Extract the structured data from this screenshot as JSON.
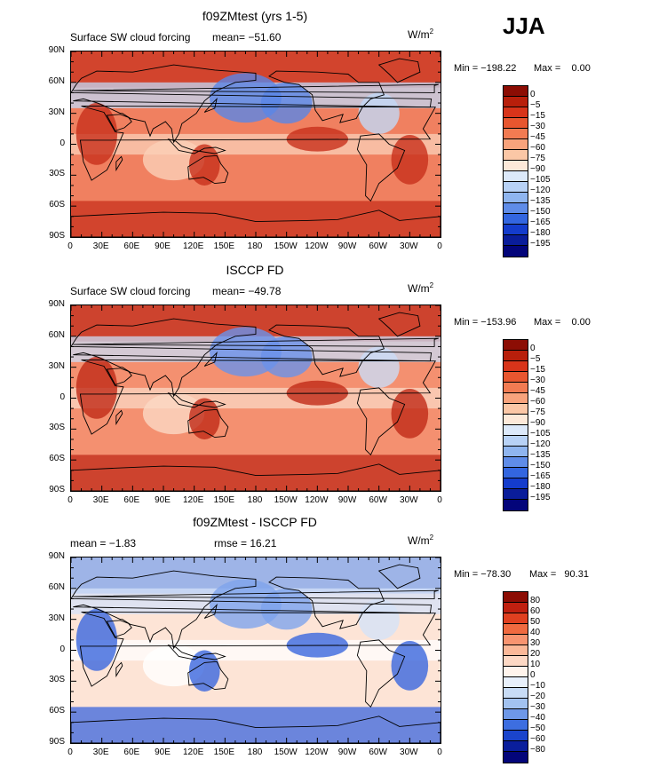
{
  "season": "JJA",
  "panels": [
    {
      "title": "f09ZMtest (yrs 1-5)",
      "left_label": "Surface SW cloud forcing",
      "mean_label": "mean= −51.60",
      "rmse_label": "",
      "units": "W/m",
      "units_sup": "2",
      "min_label": "Min = −198.22",
      "max_label": "Max =    0.00",
      "colorbar_labels": [
        "0",
        "−5",
        "−15",
        "−30",
        "−45",
        "−60",
        "−75",
        "−90",
        "−105",
        "−120",
        "−135",
        "−150",
        "−165",
        "−180",
        "−195"
      ],
      "colorbar_colors": [
        "#8c0d04",
        "#b81f0b",
        "#d8341a",
        "#e8562f",
        "#f27b52",
        "#f8a37c",
        "#fbc7a6",
        "#fde9d9",
        "#dce9fa",
        "#b8d2f6",
        "#8fb5ef",
        "#5f8ce8",
        "#3366e0",
        "#143ccc",
        "#0a1d9a",
        "#03057a"
      ],
      "map_colors": {
        "base": "#f08060",
        "deep": "#c8301c",
        "pale": "#fbd0b8",
        "blue": "#5a86e6",
        "lightblue": "#c2d8f6"
      }
    },
    {
      "title": "ISCCP FD",
      "left_label": "Surface SW cloud forcing",
      "mean_label": "mean= −49.78",
      "rmse_label": "",
      "units": "W/m",
      "units_sup": "2",
      "min_label": "Min = −153.96",
      "max_label": "Max =    0.00",
      "colorbar_labels": [
        "0",
        "−5",
        "−15",
        "−30",
        "−45",
        "−60",
        "−75",
        "−90",
        "−105",
        "−120",
        "−135",
        "−150",
        "−165",
        "−180",
        "−195"
      ],
      "colorbar_colors": [
        "#8c0d04",
        "#b81f0b",
        "#d8341a",
        "#e8562f",
        "#f27b52",
        "#f8a37c",
        "#fbc7a6",
        "#fde9d9",
        "#dce9fa",
        "#b8d2f6",
        "#8fb5ef",
        "#5f8ce8",
        "#3366e0",
        "#143ccc",
        "#0a1d9a",
        "#03057a"
      ],
      "map_colors": {
        "base": "#f49070",
        "deep": "#c02a18",
        "pale": "#fbd8c4",
        "blue": "#6a92ea",
        "lightblue": "#cadcf6"
      }
    },
    {
      "title": "f09ZMtest - ISCCP FD",
      "left_label": "mean =   −1.83",
      "mean_label": "",
      "rmse_label": "rmse =   16.21",
      "units": "W/m",
      "units_sup": "2",
      "min_label": "Min = −78.30",
      "max_label": "Max =   90.31",
      "colorbar_labels": [
        "80",
        "60",
        "50",
        "40",
        "30",
        "20",
        "10",
        "0",
        "−10",
        "−20",
        "−30",
        "−40",
        "−50",
        "−60",
        "−80"
      ],
      "colorbar_colors": [
        "#8c0d04",
        "#c02010",
        "#e04020",
        "#f06a40",
        "#f89470",
        "#fbb898",
        "#fdd8c4",
        "#fff4ec",
        "#e8f0fb",
        "#c8dcf6",
        "#a2c2f0",
        "#6e98e8",
        "#3d6ee0",
        "#1a44cc",
        "#0a1e9c",
        "#03057a"
      ],
      "map_colors": {
        "base": "#fde4d6",
        "deep": "#3a66de",
        "pale": "#ffffff",
        "blue": "#7ea4ec",
        "lightblue": "#d4e2f8"
      }
    }
  ],
  "lat_labels": [
    "90N",
    "60N",
    "30N",
    "0",
    "30S",
    "60S",
    "90S"
  ],
  "lon_labels": [
    "0",
    "30E",
    "60E",
    "90E",
    "120E",
    "150E",
    "180",
    "150W",
    "120W",
    "90W",
    "60W",
    "30W",
    "0"
  ]
}
